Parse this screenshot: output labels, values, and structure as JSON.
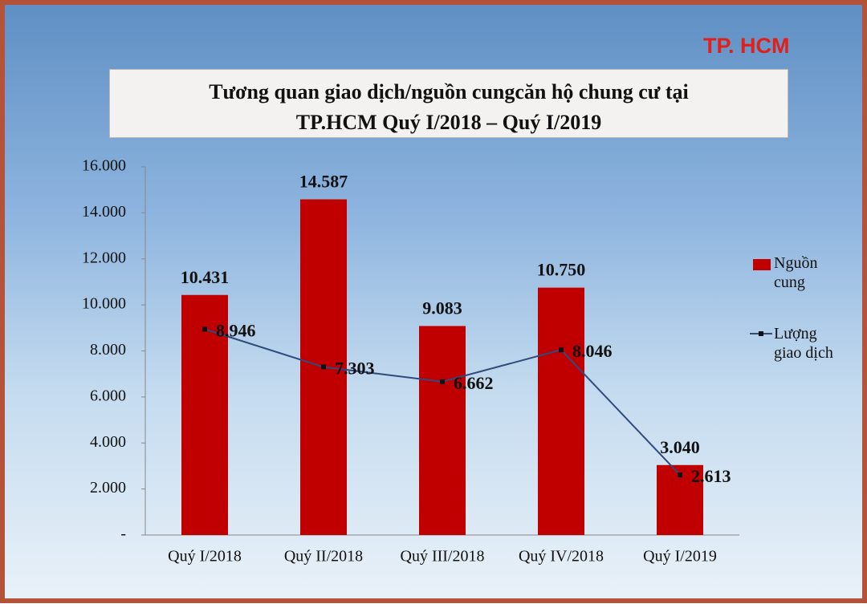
{
  "chart_data": {
    "type": "combo",
    "title": "Tương quan giao dịch/nguồn cungcăn hộ chung cư tại TP.HCM Quý I/2018 – Quý I/2019",
    "annotation": "TP. HCM",
    "categories": [
      "Quý I/2018",
      "Quý II/2018",
      "Quý III/2018",
      "Quý IV/2018",
      "Quý I/2019"
    ],
    "series": [
      {
        "name": "Nguồn cung",
        "type": "bar",
        "color": "#c00000",
        "values": [
          10431,
          14587,
          9083,
          10750,
          3040
        ],
        "value_labels": [
          "10.431",
          "14.587",
          "9.083",
          "10.750",
          "3.040"
        ]
      },
      {
        "name": "Lượng giao dịch",
        "type": "line",
        "color": "#2f4b7c",
        "values": [
          8946,
          7303,
          6662,
          8046,
          2613
        ],
        "value_labels": [
          "8.946",
          "7.303",
          "6.662",
          "8.046",
          "2.613"
        ]
      }
    ],
    "ylim": [
      0,
      16000
    ],
    "yticks": [
      {
        "value": 0,
        "label": "-"
      },
      {
        "value": 2000,
        "label": "2.000"
      },
      {
        "value": 4000,
        "label": "4.000"
      },
      {
        "value": 6000,
        "label": "6.000"
      },
      {
        "value": 8000,
        "label": "8.000"
      },
      {
        "value": 10000,
        "label": "10.000"
      },
      {
        "value": 12000,
        "label": "12.000"
      },
      {
        "value": 14000,
        "label": "14.000"
      },
      {
        "value": 16000,
        "label": "16.000"
      }
    ],
    "legend": "right"
  }
}
